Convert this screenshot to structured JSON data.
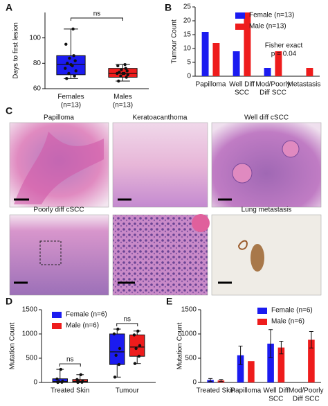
{
  "panel_labels": [
    "A",
    "B",
    "C",
    "D",
    "E"
  ],
  "histology": {
    "panels": [
      "Papilloma",
      "Keratoacanthoma",
      "Well diff cSCC",
      "Poorly diff cSCC",
      "Lung metastasis"
    ]
  },
  "chart_data": [
    {
      "type": "box",
      "y_label": "Days to first lesion",
      "categories": [
        [
          "Females",
          "(n=13)"
        ],
        [
          "Males",
          "(n=13)"
        ]
      ],
      "colors": [
        "#1b1bf0",
        "#ee1c1c"
      ],
      "boxes": [
        {
          "min": 68,
          "q1": 71,
          "median": 79,
          "q3": 86,
          "max": 107,
          "points": [
            68,
            70,
            72,
            74,
            76,
            78,
            79,
            80,
            82,
            84,
            86,
            95,
            107
          ]
        },
        {
          "min": 66,
          "q1": 69,
          "median": 72,
          "q3": 76,
          "max": 79,
          "points": [
            66,
            69,
            70,
            71,
            72,
            72,
            72,
            73,
            74,
            75,
            76,
            78,
            79
          ]
        }
      ],
      "ylim": [
        60,
        120
      ],
      "yticks": [
        60,
        80,
        100
      ],
      "annotation": "ns"
    },
    {
      "type": "bar",
      "y_label": "Tumour Count",
      "categories": [
        [
          "Papilloma"
        ],
        [
          "Well Diff",
          "SCC"
        ],
        [
          "Mod/Poorly",
          "Diff SCC"
        ],
        [
          "Metastasis"
        ]
      ],
      "series": [
        {
          "name": "Female  (n=13)",
          "color": "#1b1bf0",
          "values": [
            16,
            9,
            3,
            0
          ]
        },
        {
          "name": "Male  (n=13)",
          "color": "#ee1c1c",
          "values": [
            12,
            23,
            9,
            3
          ]
        }
      ],
      "ylim": [
        0,
        25
      ],
      "yticks": [
        0,
        5,
        10,
        15,
        20,
        25
      ],
      "annotation": [
        "Fisher exact",
        "p = 0.04"
      ]
    },
    {
      "type": "box",
      "y_label": "Mutation Count",
      "categories": [
        [
          "Treated Skin"
        ],
        [
          "Tumour"
        ]
      ],
      "series": [
        {
          "name": "Female  (n=6)",
          "color": "#1b1bf0",
          "boxes": [
            {
              "min": 0,
              "q1": 5,
              "median": 20,
              "q3": 75,
              "max": 270,
              "points": [
                0,
                5,
                15,
                25,
                70,
                270
              ]
            },
            {
              "min": 110,
              "q1": 370,
              "median": 630,
              "q3": 1000,
              "max": 1100,
              "points": [
                110,
                370,
                560,
                700,
                1000,
                1100
              ]
            }
          ]
        },
        {
          "name": "Male  (n=6)",
          "color": "#ee1c1c",
          "boxes": [
            {
              "min": 0,
              "q1": 5,
              "median": 20,
              "q3": 60,
              "max": 160,
              "points": [
                0,
                5,
                15,
                25,
                60,
                160
              ]
            },
            {
              "min": 390,
              "q1": 540,
              "median": 730,
              "q3": 980,
              "max": 1060,
              "points": [
                390,
                540,
                700,
                760,
                980,
                1060
              ]
            }
          ]
        }
      ],
      "ylim": [
        0,
        1500
      ],
      "yticks": [
        0,
        500,
        1000,
        1500
      ],
      "annotations": [
        "ns",
        "ns"
      ]
    },
    {
      "type": "bar",
      "y_label": "Mutation Count",
      "categories": [
        [
          "Treated Skin"
        ],
        [
          "Papilloma"
        ],
        [
          "Well Diff",
          "SCC"
        ],
        [
          "Mod/Poorly",
          "Diff SCC"
        ]
      ],
      "series": [
        {
          "name": "Female  (n=6)",
          "color": "#1b1bf0",
          "values": [
            50,
            560,
            800,
            null
          ],
          "errors": [
            30,
            190,
            290,
            null
          ]
        },
        {
          "name": "Male  (n=6)",
          "color": "#ee1c1c",
          "values": [
            40,
            440,
            720,
            880
          ],
          "errors": [
            20,
            null,
            130,
            170
          ]
        }
      ],
      "ylim": [
        0,
        1500
      ],
      "yticks": [
        0,
        500,
        1000,
        1500
      ]
    }
  ]
}
